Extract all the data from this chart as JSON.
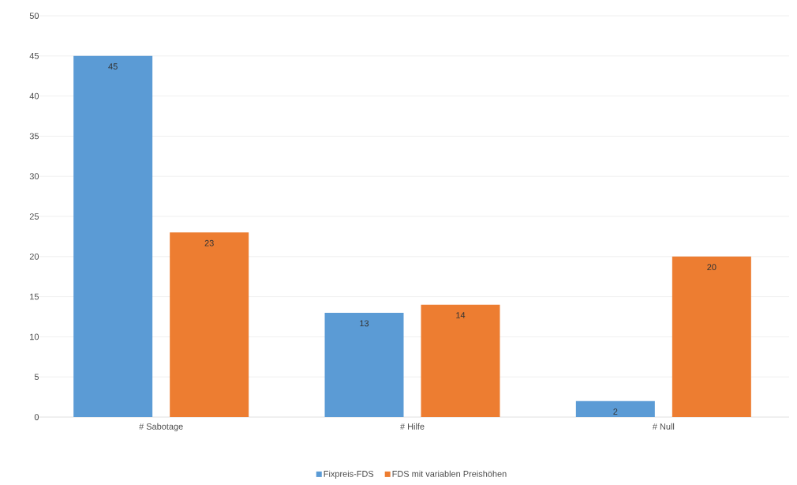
{
  "chart_data": {
    "type": "bar",
    "categories": [
      "# Sabotage",
      "# Hilfe",
      "# Null"
    ],
    "series": [
      {
        "name": "Fixpreis-FDS",
        "color": "#5b9bd5",
        "values": [
          45,
          13,
          2
        ]
      },
      {
        "name": "FDS mit variablen Preishöhen",
        "color": "#ed7d31",
        "values": [
          23,
          14,
          20
        ]
      }
    ],
    "ylim": [
      0,
      50
    ],
    "yticks": [
      0,
      5,
      10,
      15,
      20,
      25,
      30,
      35,
      40,
      45,
      50
    ],
    "grid": "y",
    "legend": "bottom",
    "data_labels": true
  }
}
